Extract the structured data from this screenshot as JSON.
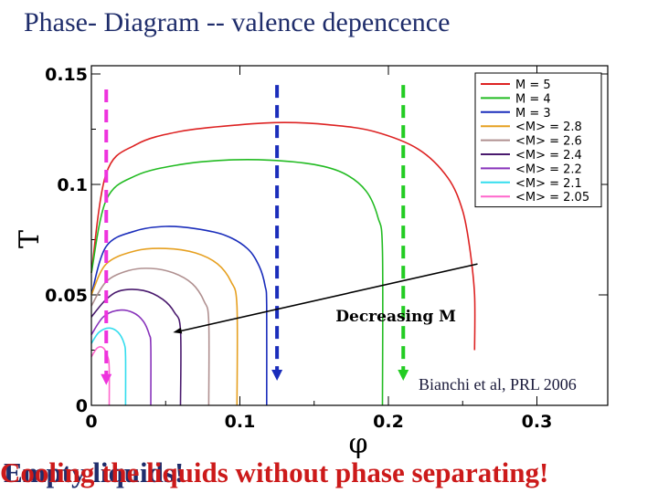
{
  "header": {
    "title": "Phase- Diagram -- valence depencence"
  },
  "citation": "Bianchi et al, PRL 2006",
  "footer": {
    "overlay_text_1": "Empty liquids!",
    "overlay_text_2": "Cooling the liquids without phase separating!"
  },
  "chart_data": {
    "type": "line",
    "title": "",
    "xlabel": "φ",
    "ylabel": "T",
    "xlim": [
      0,
      0.35
    ],
    "ylim": [
      0,
      0.15
    ],
    "xticks": [
      0,
      0.1,
      0.2,
      0.3
    ],
    "xtick_labels": [
      "0",
      "0.1",
      "0.2",
      "0.3"
    ],
    "yticks": [
      0,
      0.05,
      0.1,
      0.15
    ],
    "ytick_labels": [
      "0",
      "0.05",
      "0.1",
      "0.15"
    ],
    "grid": false,
    "legend_position": "top-right",
    "series": [
      {
        "name": "M = 5",
        "color": "#dd2222",
        "x": [
          0.0,
          0.01,
          0.03,
          0.06,
          0.1,
          0.13,
          0.16,
          0.19,
          0.22,
          0.24,
          0.25,
          0.255,
          0.258,
          0.258
        ],
        "y": [
          0.06,
          0.105,
          0.118,
          0.124,
          0.127,
          0.128,
          0.127,
          0.124,
          0.116,
          0.103,
          0.088,
          0.07,
          0.05,
          0.025
        ]
      },
      {
        "name": "M = 4",
        "color": "#22bb22",
        "x": [
          0.0,
          0.01,
          0.03,
          0.06,
          0.09,
          0.12,
          0.15,
          0.17,
          0.185,
          0.193,
          0.196,
          0.196
        ],
        "y": [
          0.06,
          0.093,
          0.104,
          0.109,
          0.111,
          0.111,
          0.109,
          0.105,
          0.097,
          0.085,
          0.07,
          0.0
        ]
      },
      {
        "name": "M = 3",
        "color": "#1a2dbb",
        "x": [
          0.0,
          0.01,
          0.03,
          0.05,
          0.07,
          0.09,
          0.105,
          0.113,
          0.117,
          0.118,
          0.118
        ],
        "y": [
          0.05,
          0.072,
          0.079,
          0.081,
          0.08,
          0.077,
          0.071,
          0.063,
          0.054,
          0.045,
          0.0
        ]
      },
      {
        "name": "<M> = 2.8",
        "color": "#e6a020",
        "x": [
          0.0,
          0.01,
          0.03,
          0.05,
          0.07,
          0.085,
          0.094,
          0.098,
          0.098
        ],
        "y": [
          0.05,
          0.064,
          0.07,
          0.071,
          0.069,
          0.064,
          0.056,
          0.045,
          0.0
        ]
      },
      {
        "name": "<M> = 2.6",
        "color": "#b09090",
        "x": [
          0.0,
          0.01,
          0.025,
          0.04,
          0.055,
          0.068,
          0.076,
          0.079,
          0.079
        ],
        "y": [
          0.045,
          0.056,
          0.061,
          0.062,
          0.06,
          0.055,
          0.047,
          0.038,
          0.0
        ]
      },
      {
        "name": "<M> = 2.4",
        "color": "#4a1a6e",
        "x": [
          0.0,
          0.01,
          0.02,
          0.035,
          0.048,
          0.056,
          0.06,
          0.06
        ],
        "y": [
          0.04,
          0.048,
          0.052,
          0.052,
          0.048,
          0.042,
          0.034,
          0.0
        ]
      },
      {
        "name": "<M> = 2.2",
        "color": "#8833bb",
        "x": [
          0.0,
          0.008,
          0.018,
          0.028,
          0.035,
          0.039,
          0.04,
          0.04
        ],
        "y": [
          0.032,
          0.04,
          0.043,
          0.042,
          0.038,
          0.032,
          0.027,
          0.0
        ]
      },
      {
        "name": "<M> = 2.1",
        "color": "#33ddee",
        "x": [
          0.0,
          0.005,
          0.012,
          0.018,
          0.022,
          0.023,
          0.023
        ],
        "y": [
          0.028,
          0.033,
          0.035,
          0.033,
          0.028,
          0.022,
          0.0
        ]
      },
      {
        "name": "<M> = 2.05",
        "color": "#ff66cc",
        "x": [
          0.0,
          0.004,
          0.008,
          0.011,
          0.012,
          0.012
        ],
        "y": [
          0.022,
          0.026,
          0.026,
          0.022,
          0.017,
          0.0
        ]
      }
    ],
    "markers": [
      {
        "name": "magenta-arrow",
        "color": "#ee33dd",
        "x": 0.01,
        "y_top": 0.143,
        "y_bottom": 0.01
      },
      {
        "name": "blue-arrow",
        "color": "#1a2dbb",
        "x": 0.125,
        "y_top": 0.145,
        "y_bottom": 0.012
      },
      {
        "name": "green-arrow",
        "color": "#22cc22",
        "x": 0.21,
        "y_top": 0.145,
        "y_bottom": 0.012
      }
    ],
    "annotation": {
      "text": "Decreasing M",
      "arrow_from": {
        "x": 0.26,
        "y": 0.064
      },
      "arrow_to": {
        "x": 0.055,
        "y": 0.033
      },
      "text_anchor": {
        "x": 0.205,
        "y": 0.038
      }
    }
  }
}
